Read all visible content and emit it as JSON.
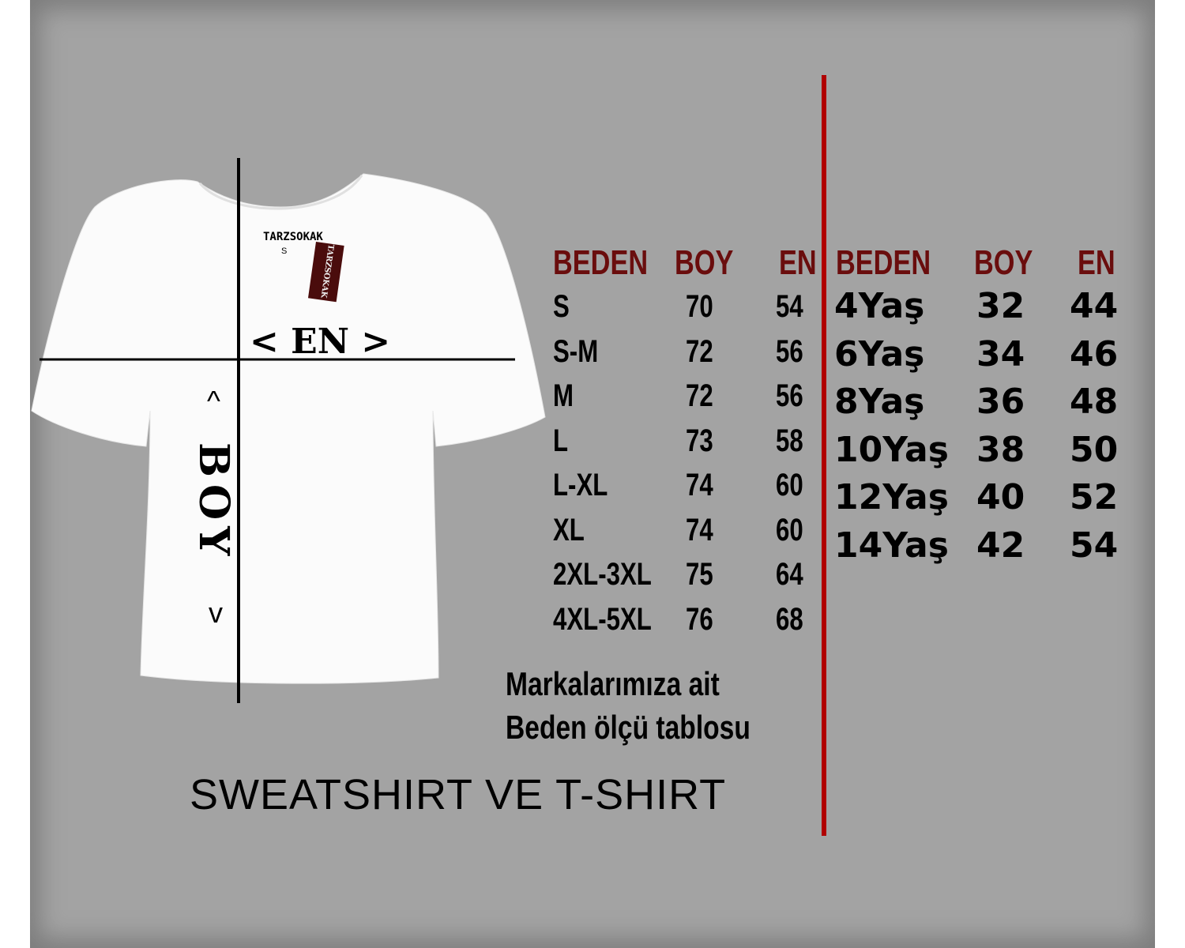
{
  "brand": {
    "collar_label": "TARZSOKAK",
    "collar_size": "S",
    "hang_tag": "TARZSOKAK",
    "tag_color": "#4a0c0c"
  },
  "diagram": {
    "width_label": "< EN >",
    "length_label": "BOY",
    "arrow_up": "^",
    "arrow_down": "v"
  },
  "colors": {
    "header": "#6a0d0d",
    "divider": "#b00000",
    "background": "#a3a3a3"
  },
  "adult_table": {
    "headers": [
      "BEDEN",
      "BOY",
      "EN"
    ],
    "rows": [
      [
        "S",
        "70",
        "54"
      ],
      [
        "S-M",
        "72",
        "56"
      ],
      [
        "M",
        "72",
        "56"
      ],
      [
        "L",
        "73",
        "58"
      ],
      [
        "L-XL",
        "74",
        "60"
      ],
      [
        "XL",
        "74",
        "60"
      ],
      [
        "2XL-3XL",
        "75",
        "64"
      ],
      [
        "4XL-5XL",
        "76",
        "68"
      ]
    ]
  },
  "kids_table": {
    "headers": [
      "BEDEN",
      "BOY",
      "EN"
    ],
    "rows": [
      [
        "4Yaş",
        "32",
        "44"
      ],
      [
        "6Yaş",
        "34",
        "46"
      ],
      [
        "8Yaş",
        "36",
        "48"
      ],
      [
        "10Yaş",
        "38",
        "50"
      ],
      [
        "12Yaş",
        "40",
        "52"
      ],
      [
        "14Yaş",
        "42",
        "54"
      ]
    ]
  },
  "caption": {
    "line1": "Markalarımıza ait",
    "line2": "Beden ölçü tablosu"
  },
  "footer_title": "SWEATSHIRT VE T-SHIRT"
}
